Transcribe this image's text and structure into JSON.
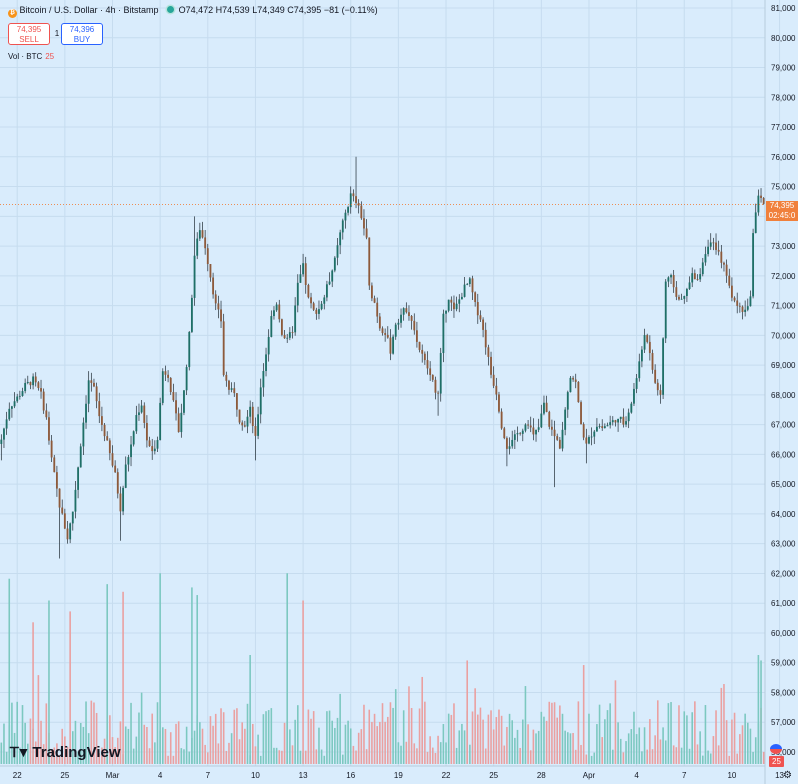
{
  "legend": {
    "symbol_icon": "bitcoin-icon",
    "title": "Bitcoin / U.S. Dollar · 4h · Bitstamp",
    "market_status_icon": "market-open-dot-icon",
    "o_label": "O",
    "o_value": "74,472",
    "h_label": "H",
    "h_value": "74,539",
    "l_label": "L",
    "l_value": "74,349",
    "c_label": "C",
    "c_value": "74,395",
    "change": "−81 (−0.11%)"
  },
  "trade": {
    "sell_price": "74,395",
    "sell_label": "SELL",
    "spread": "1",
    "buy_price": "74,396",
    "buy_label": "BUY"
  },
  "volume_legend": {
    "label": "Vol · BTC",
    "value": "25"
  },
  "price_tag": {
    "price": "74,395",
    "countdown": "02:45:0"
  },
  "volume_badge": "25",
  "logo": {
    "text": "TradingView",
    "icon": "tradingview-logo-icon"
  },
  "colors": {
    "background": "#d9ecfc",
    "up": "#26a69a",
    "down": "#ef5350",
    "candle_up": "#1f6f67",
    "candle_down": "#8d5a3b",
    "accent": "#f0803c"
  },
  "chart_data": {
    "type": "candlestick",
    "title": "Bitcoin / U.S. Dollar · 4h · Bitstamp",
    "timeframe": "4h",
    "y_range": [
      55800,
      81200
    ],
    "y_ticks": [
      "81,000",
      "80,000",
      "79,000",
      "78,000",
      "77,000",
      "76,000",
      "75,000",
      "74,000",
      "73,000",
      "72,000",
      "71,000",
      "70,000",
      "69,000",
      "68,000",
      "67,000",
      "66,000",
      "65,000",
      "64,000",
      "63,000",
      "62,000",
      "61,000",
      "60,000",
      "59,000",
      "58,000",
      "57,000",
      "56,000"
    ],
    "x_ticks": [
      "22",
      "25",
      "Mar",
      "4",
      "7",
      "10",
      "13",
      "16",
      "19",
      "22",
      "25",
      "28",
      "Apr",
      "4",
      "7",
      "10",
      "13"
    ],
    "x_tick_index": [
      6,
      24,
      42,
      60,
      78,
      96,
      114,
      132,
      150,
      168,
      186,
      204,
      222,
      240,
      258,
      276,
      294
    ],
    "close_path": [
      [
        0,
        66500
      ],
      [
        3,
        67600
      ],
      [
        6,
        67900
      ],
      [
        9,
        68300
      ],
      [
        12,
        68500
      ],
      [
        15,
        68000
      ],
      [
        17,
        67200
      ],
      [
        19,
        65800
      ],
      [
        22,
        64300
      ],
      [
        25,
        63200
      ],
      [
        27,
        64100
      ],
      [
        29,
        65600
      ],
      [
        31,
        67100
      ],
      [
        33,
        68500
      ],
      [
        35,
        68200
      ],
      [
        37,
        67300
      ],
      [
        39,
        66700
      ],
      [
        41,
        66000
      ],
      [
        43,
        65300
      ],
      [
        45,
        64200
      ],
      [
        47,
        65600
      ],
      [
        49,
        66300
      ],
      [
        51,
        67300
      ],
      [
        53,
        67700
      ],
      [
        55,
        66500
      ],
      [
        57,
        66000
      ],
      [
        59,
        66600
      ],
      [
        61,
        68800
      ],
      [
        63,
        68700
      ],
      [
        65,
        67700
      ],
      [
        67,
        66800
      ],
      [
        69,
        68100
      ],
      [
        71,
        70000
      ],
      [
        73,
        72700
      ],
      [
        75,
        73600
      ],
      [
        77,
        73000
      ],
      [
        79,
        72000
      ],
      [
        81,
        71000
      ],
      [
        83,
        70500
      ],
      [
        84,
        68700
      ],
      [
        86,
        68200
      ],
      [
        88,
        68000
      ],
      [
        90,
        67200
      ],
      [
        92,
        67000
      ],
      [
        94,
        67500
      ],
      [
        96,
        66500
      ],
      [
        98,
        68300
      ],
      [
        100,
        69400
      ],
      [
        102,
        70600
      ],
      [
        104,
        71100
      ],
      [
        106,
        70100
      ],
      [
        108,
        69800
      ],
      [
        110,
        70200
      ],
      [
        112,
        71700
      ],
      [
        114,
        72300
      ],
      [
        116,
        71200
      ],
      [
        118,
        70800
      ],
      [
        120,
        70900
      ],
      [
        122,
        71300
      ],
      [
        124,
        71900
      ],
      [
        126,
        72500
      ],
      [
        128,
        73400
      ],
      [
        130,
        74100
      ],
      [
        132,
        74700
      ],
      [
        134,
        74500
      ],
      [
        136,
        74000
      ],
      [
        138,
        73200
      ],
      [
        139,
        71600
      ],
      [
        141,
        71100
      ],
      [
        143,
        70300
      ],
      [
        145,
        70100
      ],
      [
        147,
        69500
      ],
      [
        149,
        70400
      ],
      [
        151,
        70700
      ],
      [
        153,
        70900
      ],
      [
        155,
        70600
      ],
      [
        157,
        69800
      ],
      [
        159,
        69300
      ],
      [
        161,
        68900
      ],
      [
        163,
        68400
      ],
      [
        165,
        68000
      ],
      [
        167,
        70600
      ],
      [
        169,
        71300
      ],
      [
        171,
        70800
      ],
      [
        173,
        71200
      ],
      [
        175,
        71600
      ],
      [
        177,
        71800
      ],
      [
        179,
        71000
      ],
      [
        181,
        70600
      ],
      [
        183,
        69700
      ],
      [
        185,
        68700
      ],
      [
        187,
        68100
      ],
      [
        189,
        67000
      ],
      [
        191,
        66300
      ],
      [
        193,
        66400
      ],
      [
        195,
        66700
      ],
      [
        197,
        66900
      ],
      [
        199,
        67100
      ],
      [
        201,
        66600
      ],
      [
        203,
        66900
      ],
      [
        205,
        67700
      ],
      [
        207,
        67000
      ],
      [
        209,
        66600
      ],
      [
        211,
        66300
      ],
      [
        213,
        67600
      ],
      [
        215,
        68700
      ],
      [
        217,
        68400
      ],
      [
        219,
        67000
      ],
      [
        221,
        66300
      ],
      [
        223,
        66700
      ],
      [
        225,
        67000
      ],
      [
        227,
        66900
      ],
      [
        229,
        67000
      ],
      [
        231,
        67100
      ],
      [
        233,
        67300
      ],
      [
        235,
        67000
      ],
      [
        237,
        67300
      ],
      [
        239,
        68200
      ],
      [
        241,
        69000
      ],
      [
        243,
        70100
      ],
      [
        245,
        69300
      ],
      [
        247,
        68400
      ],
      [
        249,
        68000
      ],
      [
        251,
        71800
      ],
      [
        253,
        71900
      ],
      [
        255,
        71400
      ],
      [
        257,
        71100
      ],
      [
        259,
        71500
      ],
      [
        261,
        72000
      ],
      [
        263,
        71800
      ],
      [
        265,
        72500
      ],
      [
        267,
        73100
      ],
      [
        269,
        73000
      ],
      [
        271,
        72700
      ],
      [
        273,
        72400
      ],
      [
        275,
        71600
      ],
      [
        277,
        71100
      ],
      [
        279,
        70900
      ],
      [
        281,
        70800
      ],
      [
        283,
        71300
      ],
      [
        284,
        73500
      ],
      [
        286,
        74700
      ],
      [
        288,
        74395
      ]
    ],
    "spikes": [
      {
        "i": 0,
        "low": 65800
      },
      {
        "i": 22,
        "low": 62500
      },
      {
        "i": 25,
        "low": 63000
      },
      {
        "i": 45,
        "low": 63100
      },
      {
        "i": 73,
        "high": 74000
      },
      {
        "i": 96,
        "low": 65800
      },
      {
        "i": 134,
        "high": 76000
      },
      {
        "i": 165,
        "low": 67300
      },
      {
        "i": 191,
        "low": 65600
      },
      {
        "i": 209,
        "low": 64900
      },
      {
        "i": 221,
        "low": 65700
      },
      {
        "i": 249,
        "low": 67700
      },
      {
        "i": 286,
        "high": 74900
      }
    ],
    "volume": {
      "label": "Vol · BTC",
      "range": [
        0,
        180
      ],
      "tall_bars": [
        {
          "i": 3,
          "v": 170,
          "up": true
        },
        {
          "i": 12,
          "v": 130,
          "up": false
        },
        {
          "i": 18,
          "v": 150,
          "up": true
        },
        {
          "i": 26,
          "v": 140,
          "up": false
        },
        {
          "i": 40,
          "v": 165,
          "up": true
        },
        {
          "i": 46,
          "v": 158,
          "up": false
        },
        {
          "i": 60,
          "v": 175,
          "up": true
        },
        {
          "i": 72,
          "v": 162,
          "up": true
        },
        {
          "i": 74,
          "v": 155,
          "up": true
        },
        {
          "i": 94,
          "v": 100,
          "up": true
        },
        {
          "i": 108,
          "v": 175,
          "up": true
        },
        {
          "i": 114,
          "v": 150,
          "up": false
        },
        {
          "i": 176,
          "v": 95,
          "up": false
        },
        {
          "i": 286,
          "v": 100,
          "up": true
        },
        {
          "i": 287,
          "v": 95,
          "up": true
        }
      ]
    }
  }
}
